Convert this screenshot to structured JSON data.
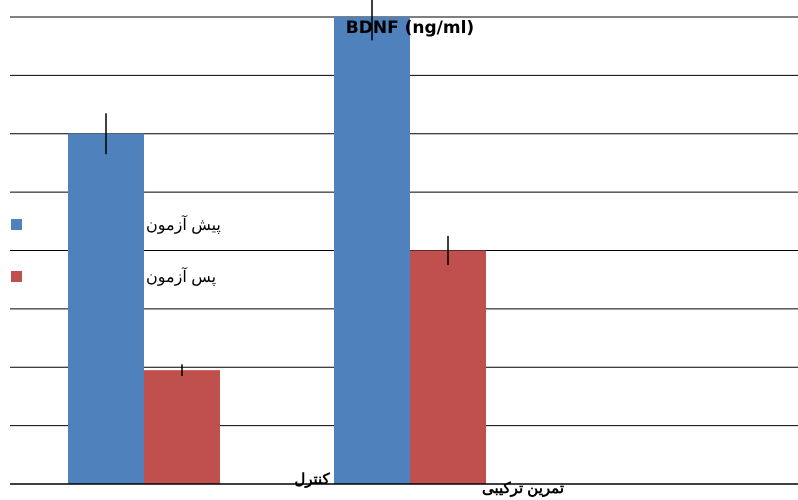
{
  "chart_data": {
    "type": "bar",
    "title": "BDNF (ng/ml)",
    "xlabel": "",
    "ylabel": "",
    "ylim": [
      0,
      8
    ],
    "grid": true,
    "legend_position": "left",
    "categories": [
      "کنترل",
      "تمرین ترکیبی"
    ],
    "series": [
      {
        "name": "پیش آزمون",
        "color": "#4f81bd",
        "values": [
          6,
          8
        ],
        "errors": [
          0.35,
          0.4
        ]
      },
      {
        "name": "پس آزمون",
        "color": "#c0504d",
        "values": [
          1.95,
          4
        ],
        "errors": [
          0.1,
          0.25
        ]
      }
    ]
  }
}
